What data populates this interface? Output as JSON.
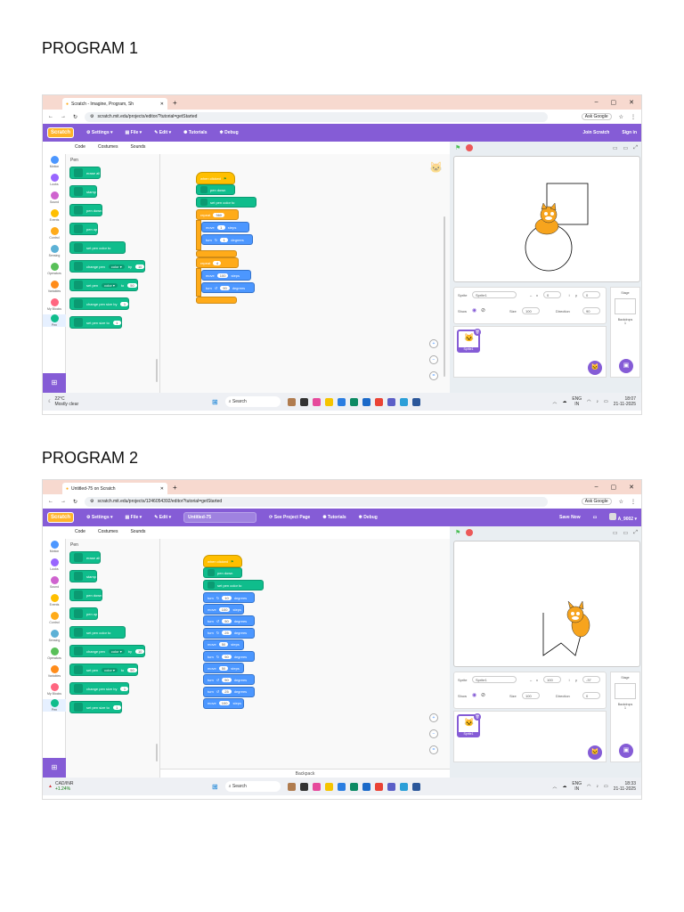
{
  "program1": {
    "heading": "PROGRAM 1",
    "browser": {
      "tab_title": "Scratch - Imagine, Program, Sh",
      "url": "scratch.mit.edu/projects/editor/?tutorial=getStarted",
      "ask_google": "Ask Google"
    },
    "menu": {
      "logo": "Scratch",
      "settings": "Settings",
      "file": "File",
      "edit": "Edit",
      "tutorials": "Tutorials",
      "debug": "Debug",
      "join": "Join Scratch",
      "signin": "Sign in"
    },
    "tabs": {
      "code": "Code",
      "costumes": "Costumes",
      "sounds": "Sounds"
    },
    "categories": [
      "Motion",
      "Looks",
      "Sound",
      "Events",
      "Control",
      "Sensing",
      "Operators",
      "Variables",
      "My Blocks",
      "Pen"
    ],
    "palette": {
      "title": "Pen",
      "blocks": [
        "erase all",
        "stamp",
        "pen down",
        "pen up",
        "set pen color to",
        "change pen",
        "set pen",
        "change pen size by",
        "set pen size to"
      ],
      "color_label": "color",
      "by": "by",
      "to": "to",
      "val10": "10",
      "val50": "50",
      "val1": "1"
    },
    "script": {
      "hat": "when clicked",
      "pen_down": "pen down",
      "set_color": "set pen color to",
      "repeat": "repeat",
      "repeat1_count": "360",
      "move": "move",
      "move1_val": "1",
      "steps": "steps",
      "turn": "turn",
      "turn1_val": "1",
      "degrees": "degrees",
      "repeat2_count": "4",
      "move2_val": "100",
      "turn2_val": "90"
    },
    "sprite": {
      "label": "Sprite",
      "name": "Sprite1",
      "x_label": "x",
      "x": "0",
      "y_label": "y",
      "y": "0",
      "show_label": "Show",
      "size_label": "Size",
      "size": "100",
      "direction_label": "Direction",
      "direction": "90",
      "thumb": "Sprite1"
    },
    "stage_panel": {
      "title": "Stage",
      "backdrops_label": "Backdrops",
      "backdrops_count": "1"
    },
    "taskbar": {
      "temp": "22°C",
      "weather": "Mostly clear",
      "search": "Search",
      "lang": "ENG",
      "region": "IN",
      "time": "18:07",
      "date": "21-11-2025"
    }
  },
  "program2": {
    "heading": "PROGRAM 2",
    "browser": {
      "tab_title": "Untitled-75 on Scratch",
      "url": "scratch.mit.edu/projects/1246054392/editor?tutorial=getStarted",
      "ask_google": "Ask Google"
    },
    "menu": {
      "logo": "Scratch",
      "settings": "Settings",
      "file": "File",
      "edit": "Edit",
      "project_title": "Untitled-75",
      "see_project": "See Project Page",
      "tutorials": "Tutorials",
      "debug": "Debug",
      "save_now": "Save Now",
      "user": "A_9002"
    },
    "tabs": {
      "code": "Code",
      "costumes": "Costumes",
      "sounds": "Sounds"
    },
    "script": {
      "hat": "when clicked",
      "pen_down": "pen down",
      "set_color": "set pen color to",
      "turn": "turn",
      "degrees": "degrees",
      "move": "move",
      "steps": "steps",
      "rows": [
        {
          "kind": "turn",
          "dir": "cw",
          "val": "10"
        },
        {
          "kind": "move",
          "val": "100"
        },
        {
          "kind": "turn",
          "dir": "ccw",
          "val": "50"
        },
        {
          "kind": "turn",
          "dir": "cw",
          "val": "25"
        },
        {
          "kind": "move",
          "val": "50"
        },
        {
          "kind": "turn",
          "dir": "cw",
          "val": "50"
        },
        {
          "kind": "move",
          "val": "50"
        },
        {
          "kind": "turn",
          "dir": "ccw",
          "val": "50"
        },
        {
          "kind": "turn",
          "dir": "ccw",
          "val": "25"
        },
        {
          "kind": "move",
          "val": "100"
        }
      ]
    },
    "sprite": {
      "label": "Sprite",
      "name": "Sprite1",
      "x_label": "x",
      "x": "100",
      "y_label": "y",
      "y": "-37",
      "show_label": "Show",
      "size_label": "Size",
      "size": "100",
      "direction_label": "Direction",
      "direction": "0",
      "thumb": "Sprite1"
    },
    "stage_panel": {
      "title": "Stage",
      "backdrops_label": "Backdrops",
      "backdrops_count": "1"
    },
    "backpack": "Backpack",
    "taskbar": {
      "ticker": "CAD/INR",
      "change": "+1.24%",
      "search": "Search",
      "lang": "ENG",
      "region": "IN",
      "time": "18:33",
      "date": "21-11-2025"
    }
  },
  "colors": {
    "scratch_purple": "#855cd6",
    "pen_green": "#0fbd8c",
    "motion_blue": "#4c97ff",
    "control_orange": "#ffab19",
    "events_yellow": "#ffbf00"
  }
}
